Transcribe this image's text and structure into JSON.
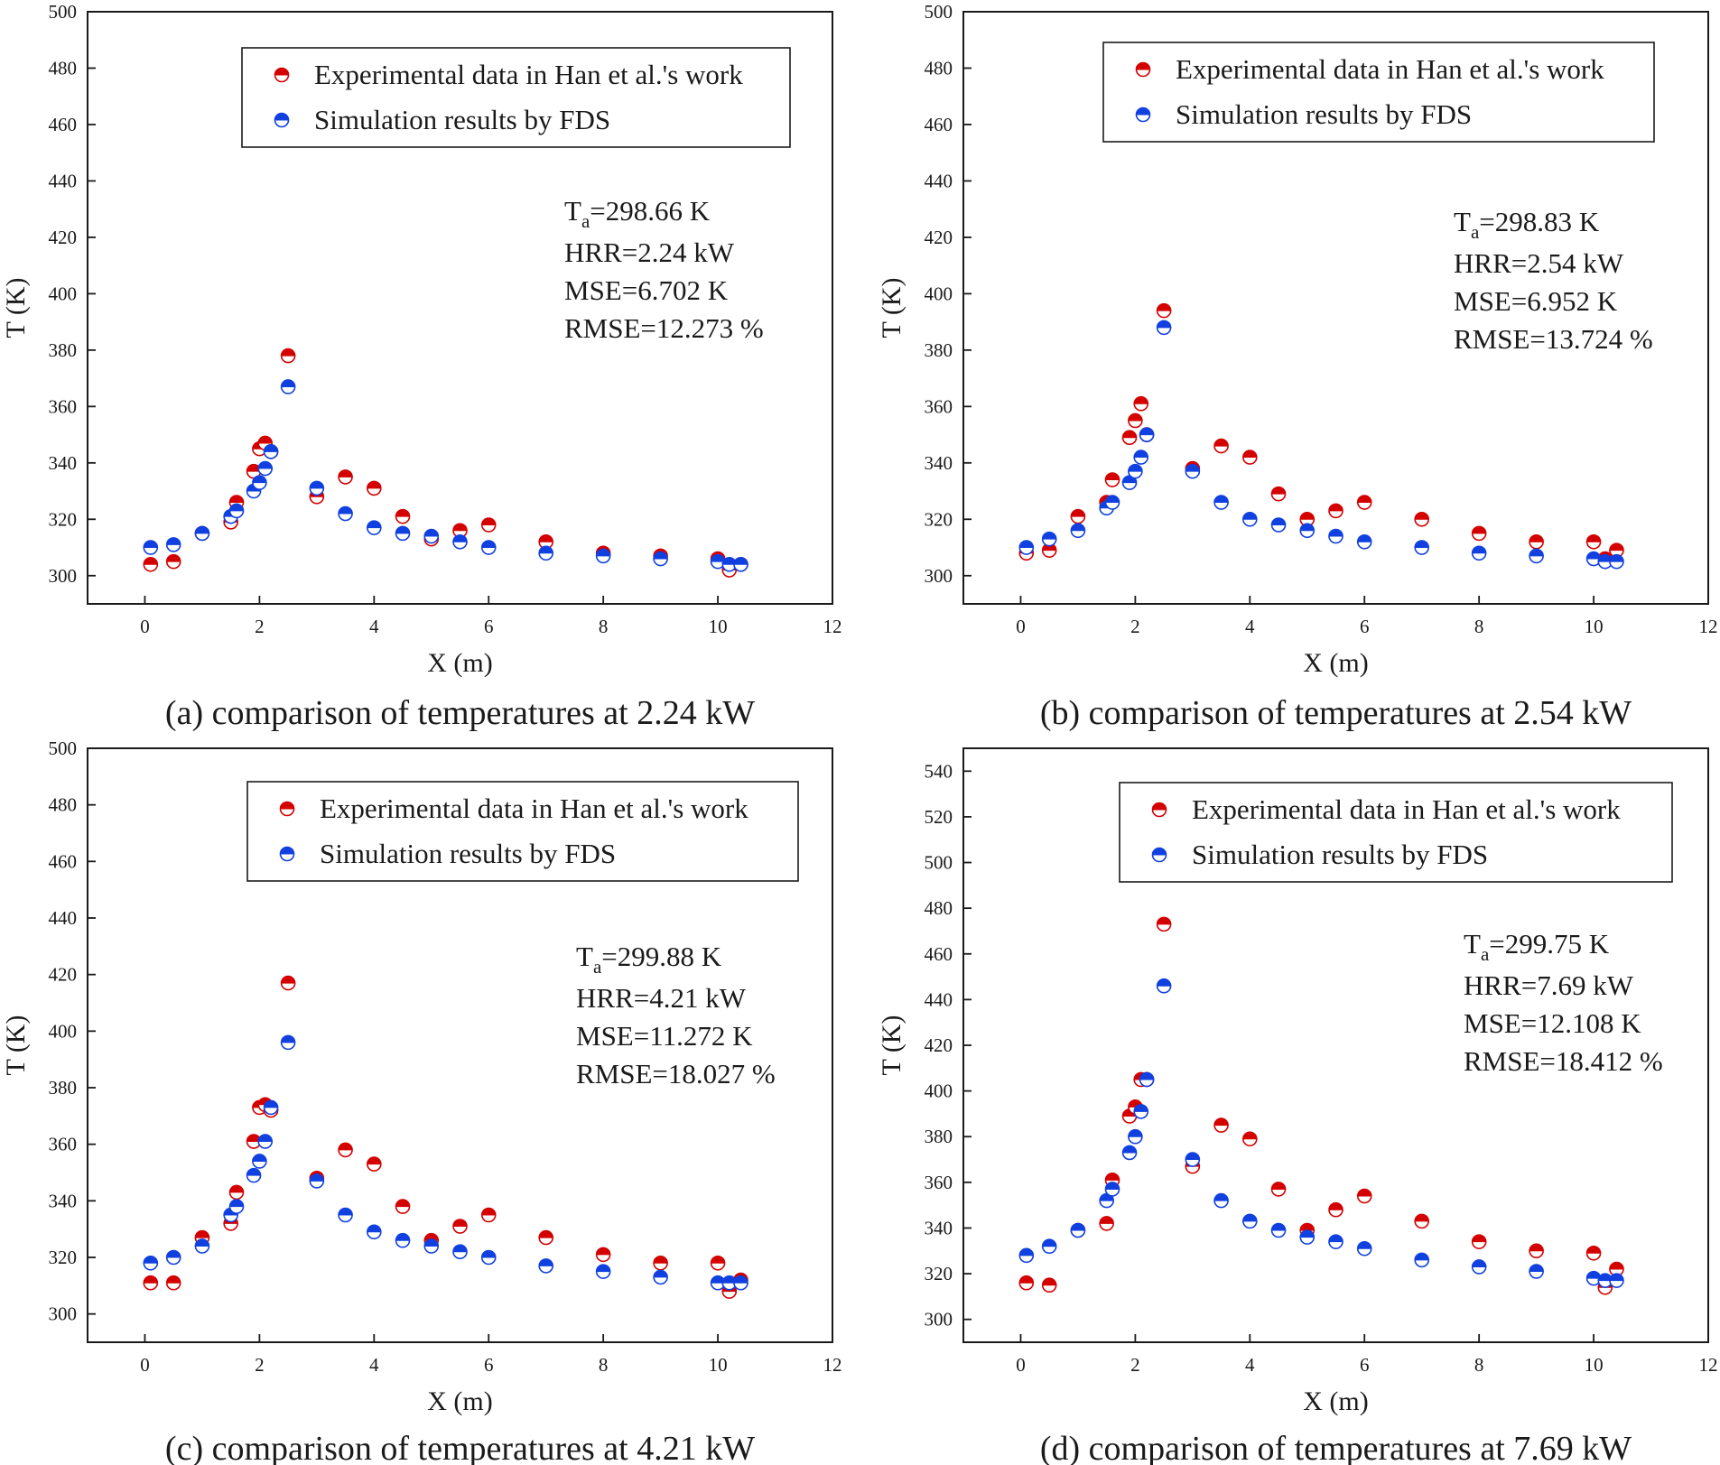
{
  "chart_data": [
    {
      "type": "scatter",
      "caption": "(a) comparison of  temperatures at 2.24 kW",
      "xlabel": "X (m)",
      "ylabel": "T (K)",
      "xlim": [
        -1,
        12
      ],
      "ylim": [
        290,
        500
      ],
      "xticks": [
        0,
        2,
        4,
        6,
        8,
        10,
        12
      ],
      "yticks": [
        300,
        320,
        340,
        360,
        380,
        400,
        420,
        440,
        460,
        480,
        500
      ],
      "grid": false,
      "legend_position": "top-right",
      "annotations": {
        "ta_value": "=298.66 K",
        "hrr": "HRR=2.24 kW",
        "mse": "MSE=6.702 K",
        "rmse": "RMSE=12.273 %"
      },
      "series": [
        {
          "name": "Experimental data in Han et al.'s work",
          "color": "#d40000",
          "x": [
            0.1,
            0.5,
            1.0,
            1.5,
            1.6,
            1.9,
            2.0,
            2.1,
            2.2,
            2.5,
            3.0,
            3.5,
            4.0,
            4.5,
            5.0,
            5.5,
            6.0,
            7.0,
            8.0,
            9.0,
            10.0,
            10.2,
            10.4
          ],
          "y": [
            304,
            305,
            315,
            319,
            326,
            337,
            345,
            347,
            344,
            378,
            328,
            335,
            331,
            321,
            313,
            316,
            318,
            312,
            308,
            307,
            306,
            302,
            304
          ]
        },
        {
          "name": "Simulation results by FDS",
          "color": "#1040e0",
          "x": [
            0.1,
            0.5,
            1.0,
            1.5,
            1.6,
            1.9,
            2.0,
            2.1,
            2.2,
            2.5,
            3.0,
            3.5,
            4.0,
            4.5,
            5.0,
            5.5,
            6.0,
            7.0,
            8.0,
            9.0,
            10.0,
            10.2,
            10.4
          ],
          "y": [
            310,
            311,
            315,
            321,
            323,
            330,
            333,
            338,
            344,
            367,
            331,
            322,
            317,
            315,
            314,
            312,
            310,
            308,
            307,
            306,
            305,
            304,
            304
          ]
        }
      ]
    },
    {
      "type": "scatter",
      "caption": "(b) comparison of  temperatures at 2.54 kW",
      "xlabel": "X (m)",
      "ylabel": "T (K)",
      "xlim": [
        -1,
        12
      ],
      "ylim": [
        290,
        500
      ],
      "xticks": [
        0,
        2,
        4,
        6,
        8,
        10,
        12
      ],
      "yticks": [
        300,
        320,
        340,
        360,
        380,
        400,
        420,
        440,
        460,
        480,
        500
      ],
      "grid": false,
      "legend_position": "top-right",
      "annotations": {
        "ta_value": "=298.83 K",
        "hrr": "HRR=2.54 kW",
        "mse": "MSE=6.952 K",
        "rmse": "RMSE=13.724 %"
      },
      "series": [
        {
          "name": "Experimental data in Han et al.'s work",
          "color": "#d40000",
          "x": [
            0.1,
            0.5,
            1.0,
            1.5,
            1.6,
            1.9,
            2.0,
            2.1,
            2.2,
            2.5,
            3.0,
            3.5,
            4.0,
            4.5,
            5.0,
            5.5,
            6.0,
            7.0,
            8.0,
            9.0,
            10.0,
            10.2,
            10.4
          ],
          "y": [
            308,
            309,
            321,
            326,
            334,
            349,
            355,
            361,
            350,
            394,
            338,
            346,
            342,
            329,
            320,
            323,
            326,
            320,
            315,
            312,
            312,
            306,
            309
          ]
        },
        {
          "name": "Simulation results by FDS",
          "color": "#1040e0",
          "x": [
            0.1,
            0.5,
            1.0,
            1.5,
            1.6,
            1.9,
            2.0,
            2.1,
            2.2,
            2.5,
            3.0,
            3.5,
            4.0,
            4.5,
            5.0,
            5.5,
            6.0,
            7.0,
            8.0,
            9.0,
            10.0,
            10.2,
            10.4
          ],
          "y": [
            310,
            313,
            316,
            324,
            326,
            333,
            337,
            342,
            350,
            388,
            337,
            326,
            320,
            318,
            316,
            314,
            312,
            310,
            308,
            307,
            306,
            305,
            305
          ]
        }
      ]
    },
    {
      "type": "scatter",
      "caption": "(c) comparison of  temperatures at 4.21 kW",
      "xlabel": "X (m)",
      "ylabel": "T (K)",
      "xlim": [
        -1,
        12
      ],
      "ylim": [
        290,
        500
      ],
      "xticks": [
        0,
        2,
        4,
        6,
        8,
        10,
        12
      ],
      "yticks": [
        300,
        320,
        340,
        360,
        380,
        400,
        420,
        440,
        460,
        480,
        500
      ],
      "grid": false,
      "legend_position": "top-right",
      "annotations": {
        "ta_value": "=299.88 K",
        "hrr": "HRR=4.21 kW",
        "mse": "MSE=11.272 K",
        "rmse": "RMSE=18.027 %"
      },
      "series": [
        {
          "name": "Experimental data in Han et al.'s work",
          "color": "#d40000",
          "x": [
            0.1,
            0.5,
            1.0,
            1.5,
            1.6,
            1.9,
            2.0,
            2.1,
            2.2,
            2.5,
            3.0,
            3.5,
            4.0,
            4.5,
            5.0,
            5.5,
            6.0,
            7.0,
            8.0,
            9.0,
            10.0,
            10.2,
            10.4
          ],
          "y": [
            311,
            311,
            327,
            332,
            343,
            361,
            373,
            374,
            372,
            417,
            348,
            358,
            353,
            338,
            326,
            331,
            335,
            327,
            321,
            318,
            318,
            308,
            312
          ]
        },
        {
          "name": "Simulation results by FDS",
          "color": "#1040e0",
          "x": [
            0.1,
            0.5,
            1.0,
            1.5,
            1.6,
            1.9,
            2.0,
            2.1,
            2.2,
            2.5,
            3.0,
            3.5,
            4.0,
            4.5,
            5.0,
            5.5,
            6.0,
            7.0,
            8.0,
            9.0,
            10.0,
            10.2,
            10.4
          ],
          "y": [
            318,
            320,
            324,
            335,
            338,
            349,
            354,
            361,
            373,
            396,
            347,
            335,
            329,
            326,
            324,
            322,
            320,
            317,
            315,
            313,
            311,
            311,
            311
          ]
        }
      ]
    },
    {
      "type": "scatter",
      "caption": "(d) comparison of  temperatures at 7.69 kW",
      "xlabel": "X (m)",
      "ylabel": "T (K)",
      "xlim": [
        -1,
        12
      ],
      "ylim": [
        290,
        550
      ],
      "xticks": [
        0,
        2,
        4,
        6,
        8,
        10,
        12
      ],
      "yticks": [
        300,
        320,
        340,
        360,
        380,
        400,
        420,
        440,
        460,
        480,
        500,
        520,
        540
      ],
      "grid": false,
      "legend_position": "top-right",
      "annotations": {
        "ta_value": "=299.75 K",
        "hrr": "HRR=7.69 kW",
        "mse": "MSE=12.108 K",
        "rmse": "RMSE=18.412 %"
      },
      "series": [
        {
          "name": "Experimental data in Han et al.'s work",
          "color": "#d40000",
          "x": [
            0.1,
            0.5,
            1.0,
            1.5,
            1.6,
            1.9,
            2.0,
            2.1,
            2.2,
            2.5,
            3.0,
            3.5,
            4.0,
            4.5,
            5.0,
            5.5,
            6.0,
            7.0,
            8.0,
            9.0,
            10.0,
            10.2,
            10.4
          ],
          "y": [
            316,
            315,
            339,
            342,
            361,
            389,
            393,
            405,
            405,
            473,
            367,
            385,
            379,
            357,
            339,
            348,
            354,
            343,
            334,
            330,
            329,
            314,
            322
          ]
        },
        {
          "name": "Simulation results by FDS",
          "color": "#1040e0",
          "x": [
            0.1,
            0.5,
            1.0,
            1.5,
            1.6,
            1.9,
            2.0,
            2.1,
            2.2,
            2.5,
            3.0,
            3.5,
            4.0,
            4.5,
            5.0,
            5.5,
            6.0,
            7.0,
            8.0,
            9.0,
            10.0,
            10.2,
            10.4
          ],
          "y": [
            328,
            332,
            339,
            352,
            357,
            373,
            380,
            391,
            405,
            446,
            370,
            352,
            343,
            339,
            336,
            334,
            331,
            326,
            323,
            321,
            318,
            317,
            317
          ]
        }
      ]
    }
  ]
}
